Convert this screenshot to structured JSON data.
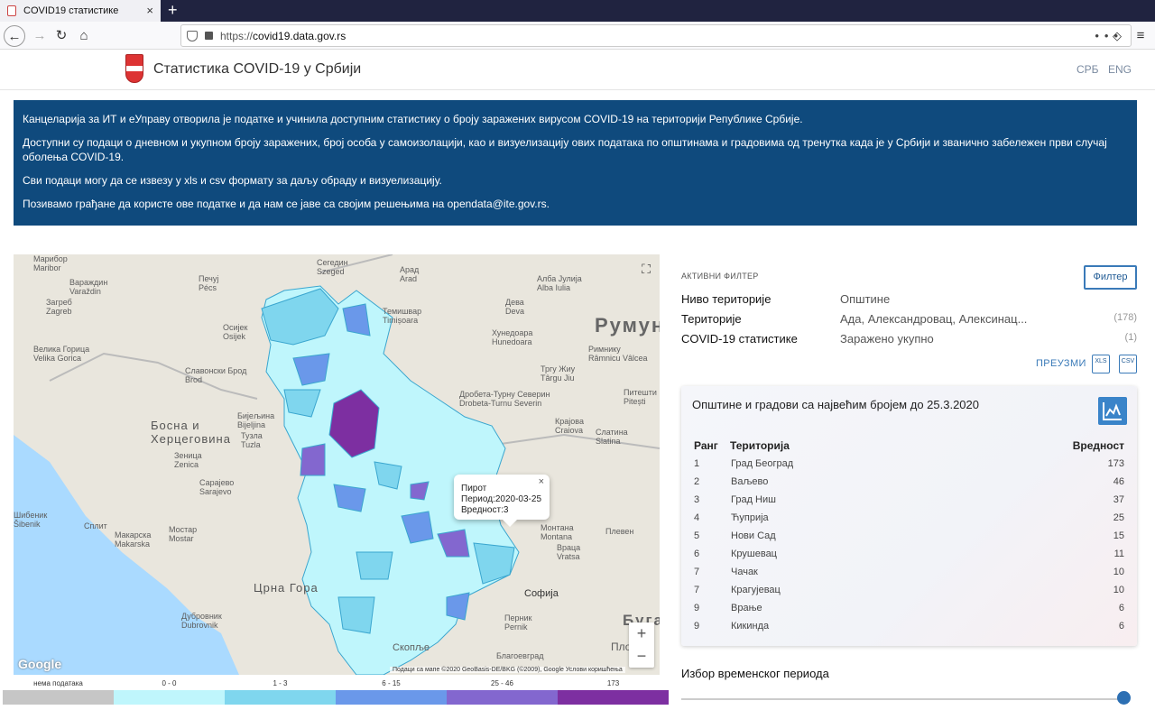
{
  "browser": {
    "tab_title": "COVID19 статистике",
    "new_tab_label": "+",
    "url_scheme": "https://",
    "url_domain": "covid19.data.gov.rs"
  },
  "header": {
    "site_title": "Статистика COVID-19 у Србији",
    "languages": [
      "СРБ",
      "ENG"
    ]
  },
  "info": {
    "paragraphs": [
      "Канцеларија за ИТ и еУправу отворила је податке и учинила доступним статистику о броју заражених вирусом COVID-19 на територији Републике Србије.",
      "Доступни су подаци о дневном и укупном броју заражених, број особа у самоизолацији, као и визуелизацију ових података по општинама и градовима од тренутка када је у Србији и званично забележен први случај оболења COVID-19.",
      "Сви подаци могу да се извезу у xls и csv формату за даљу обраду и визуелизацију.",
      "Позивамо грађане да користе ове податке и да нам се јаве са својим решењима на opendata@ite.gov.rs."
    ]
  },
  "map": {
    "labels": {
      "maribor": "Марибор",
      "maribor_lat": "Maribor",
      "pecs": "Печуј",
      "pecs_lat": "Pécs",
      "szeged": "Сегедин",
      "szeged_lat": "Szeged",
      "arad": "Арад",
      "arad_lat": "Arad",
      "zagreb": "Загреб",
      "zagreb_lat": "Zagreb",
      "varazdin": "Вараждин",
      "varazdin_lat": "Varaždin",
      "osijek": "Осијек",
      "osijek_lat": "Osijek",
      "timisoara": "Темишвар",
      "timisoara_lat": "Timișoara",
      "deva": "Дева",
      "deva_lat": "Deva",
      "hunedoara": "Хунедоара",
      "hunedoara_lat": "Hunedoara",
      "romania": "Румун",
      "alba": "Алба Јулија",
      "alba_lat": "Alba Iulia",
      "rimnicu": "Римнику",
      "rimnicu_lat": "Râmnicu Vâlcea",
      "targu": "Тргу Жиу",
      "targu_lat": "Târgu Jiu",
      "pitesti": "Питешти",
      "pitesti_lat": "Pitești",
      "gorica": "Велика Горица",
      "gorica_lat": "Velika Gorica",
      "brod": "Славонски Брод",
      "brod_lat": "Brod",
      "bijeljina": "Бијељина",
      "bijeljina_lat": "Bijeljina",
      "tuzla": "Тузла",
      "tuzla_lat": "Tuzla",
      "bosnia_1": "Босна и",
      "bosnia_2": "Херцеговина",
      "zenica": "Зеница",
      "zenica_lat": "Zenica",
      "sarajevo": "Сарајево",
      "sarajevo_lat": "Sarajevo",
      "sibenik": "Шибеник",
      "sibenik_lat": "Šibenik",
      "split": "Сплит",
      "makarska": "Макарска",
      "makarska_lat": "Makarska",
      "mostar": "Мостар",
      "mostar_lat": "Mostar",
      "montenegro": "Црна Гора",
      "dubrovnik": "Дубровник",
      "dubrovnik_lat": "Dubrovnik",
      "turnu": "Дробета-Турну Северин",
      "turnu_lat": "Drobeta-Turnu Severin",
      "craiova": "Крајова",
      "craiova_lat": "Craiova",
      "slatina": "Слатина",
      "slatina_lat": "Slatina",
      "montana": "Монтана",
      "montana_lat": "Montana",
      "vratsa": "Враца",
      "vratsa_lat": "Vratsa",
      "pleven": "Плевен",
      "sofia": "Софија",
      "pernik": "Перник",
      "pernik_lat": "Pernik",
      "blagoevgrad": "Благоевград",
      "skopje": "Скопље",
      "bulgaria": "Буга",
      "plov": "Плов"
    },
    "fullscreen_icon": "fullscreen-icon",
    "zoom_in": "+",
    "zoom_out": "−",
    "google": "Google",
    "credit": "Подаци са мапе ©2020 GeoBasis-DE/BKG (©2009), Google    Услови коришћења",
    "tooltip": {
      "name": "Пирот",
      "period": "Период:2020-03-25",
      "value": "Вредност:3",
      "close": "×"
    }
  },
  "legend": [
    {
      "label": "нема података",
      "color": "#c6c6c6"
    },
    {
      "label": "0 - 0",
      "color": "#bff6fc"
    },
    {
      "label": "1 - 3",
      "color": "#7fd6ee"
    },
    {
      "label": "6 - 15",
      "color": "#6a98ea"
    },
    {
      "label": "25 - 46",
      "color": "#8367cf"
    },
    {
      "label": "173",
      "color": "#7d2fa1"
    }
  ],
  "filters": {
    "heading": "АКТИВНИ ФИЛТЕР",
    "button": "Филтер",
    "rows": [
      {
        "key": "Ниво територије",
        "value": "Општине",
        "count": ""
      },
      {
        "key": "Територије",
        "value": "Ада, Александровац, Алексинац...",
        "count": "(178)"
      },
      {
        "key": "COVID-19 статистике",
        "value": "Заражено укупно",
        "count": "(1)"
      }
    ],
    "download": "ПРЕУЗМИ",
    "xls": "XLS",
    "csv": "CSV"
  },
  "ranking": {
    "title": "Општине и градови са највећим бројем до 25.3.2020",
    "columns": {
      "rank": "Ранг",
      "territory": "Територија",
      "value": "Вредност"
    },
    "rows": [
      {
        "rank": "1",
        "name": "Град Београд",
        "value": "173"
      },
      {
        "rank": "2",
        "name": "Ваљево",
        "value": "46"
      },
      {
        "rank": "3",
        "name": "Град Ниш",
        "value": "37"
      },
      {
        "rank": "4",
        "name": "Ћуприја",
        "value": "25"
      },
      {
        "rank": "5",
        "name": "Нови Сад",
        "value": "15"
      },
      {
        "rank": "6",
        "name": "Крушевац",
        "value": "11"
      },
      {
        "rank": "7",
        "name": "Чачак",
        "value": "10"
      },
      {
        "rank": "7",
        "name": "Крагујевац",
        "value": "10"
      },
      {
        "rank": "9",
        "name": "Врање",
        "value": "6"
      },
      {
        "rank": "9",
        "name": "Кикинда",
        "value": "6"
      }
    ]
  },
  "period": {
    "title": "Избор временског периода",
    "position": 1.0
  }
}
